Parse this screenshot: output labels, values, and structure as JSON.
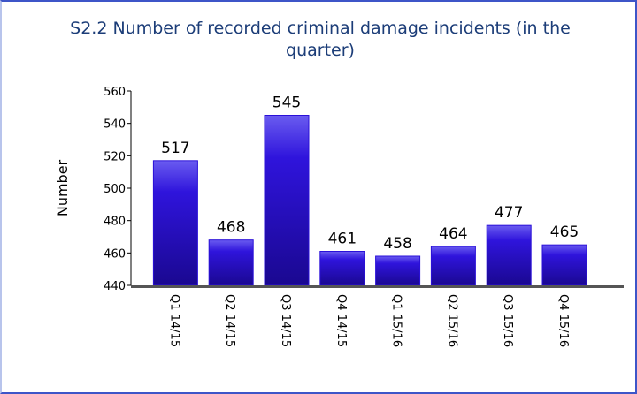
{
  "chart_data": {
    "type": "bar",
    "title": "S2.2 Number of recorded criminal damage incidents (in the quarter)",
    "y_label": "Number",
    "categories": [
      "Q1 14/15",
      "Q2 14/15",
      "Q3 14/15",
      "Q4 14/15",
      "Q1 15/16",
      "Q2 15/16",
      "Q3 15/16",
      "Q4 15/16"
    ],
    "values": [
      517,
      468,
      545,
      461,
      458,
      464,
      477,
      465
    ],
    "color": "#2a10d8",
    "ylim": [
      440,
      560
    ],
    "yticks": [
      440,
      460,
      480,
      500,
      520,
      540,
      560
    ]
  }
}
